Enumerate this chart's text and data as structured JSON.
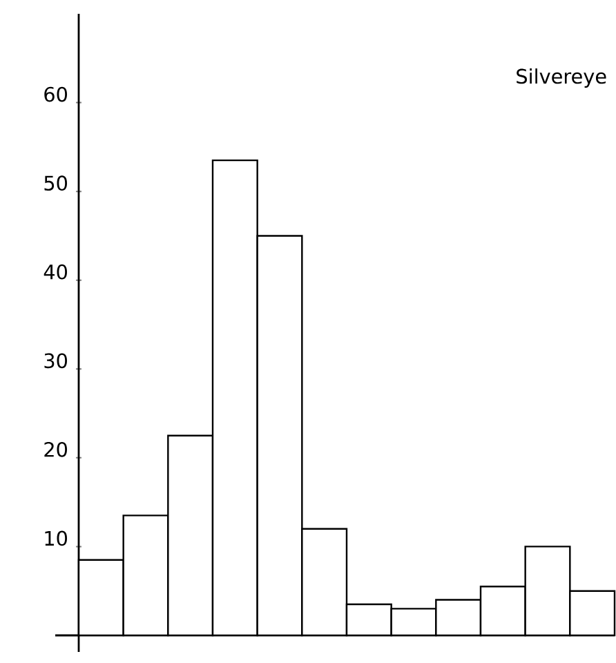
{
  "chart_data": {
    "type": "bar",
    "title": "Silvereye",
    "categories": [
      null,
      null,
      null,
      null,
      null,
      null,
      null,
      null,
      null,
      null,
      null,
      null
    ],
    "values": [
      8.5,
      13.5,
      22.5,
      53.5,
      45,
      12,
      3.5,
      3,
      4,
      5.5,
      10,
      5
    ],
    "color": "#000000",
    "ylim": [
      0,
      70
    ],
    "yticks": [
      10,
      20,
      30,
      40,
      50,
      60
    ],
    "grid": false,
    "tick_labels": "y"
  }
}
